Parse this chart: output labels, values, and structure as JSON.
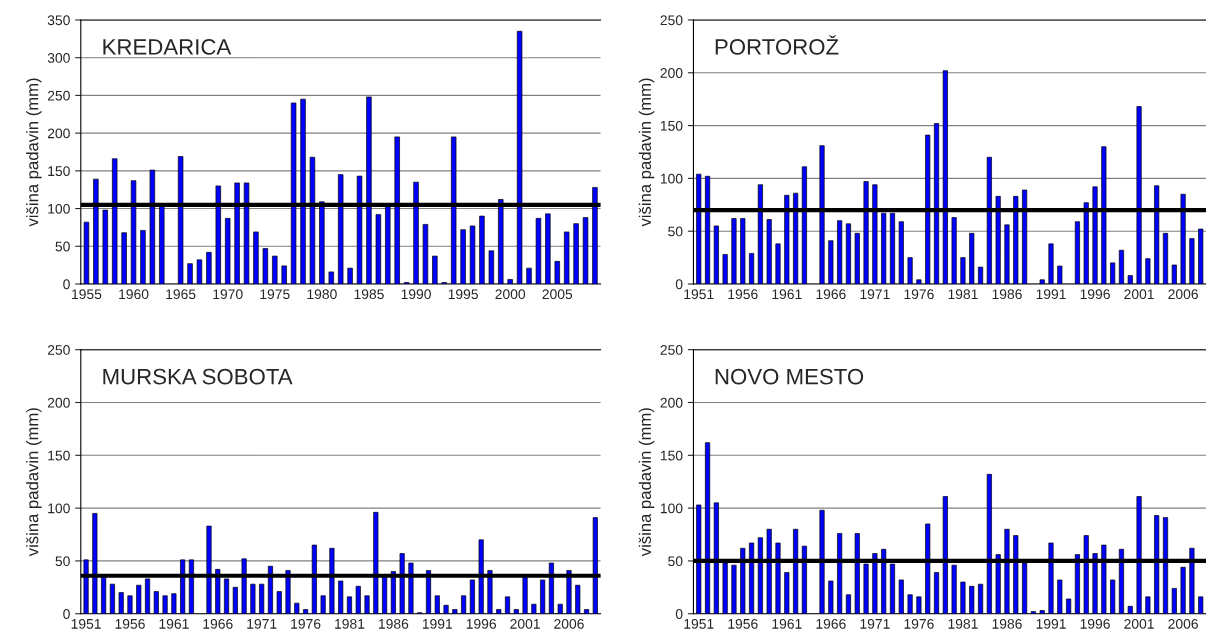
{
  "chart_data": [
    {
      "type": "bar",
      "title": "KREDARICA",
      "ylabel": "višina padavin (mm)",
      "ylim": [
        0,
        350
      ],
      "yticks": [
        0,
        50,
        100,
        150,
        200,
        250,
        300,
        350
      ],
      "grid": "y",
      "color": "#0000ff",
      "categories": [
        "1955",
        null,
        null,
        null,
        null,
        "1960",
        null,
        null,
        null,
        null,
        "1965",
        null,
        null,
        null,
        null,
        "1970",
        null,
        null,
        null,
        null,
        "1975",
        null,
        null,
        null,
        null,
        "1980",
        null,
        null,
        null,
        null,
        "1985",
        null,
        null,
        null,
        null,
        "1990",
        null,
        null,
        null,
        null,
        "1995",
        null,
        null,
        null,
        null,
        "2000",
        null,
        null,
        null,
        null,
        "2005",
        null,
        null,
        null,
        null
      ],
      "values": [
        82,
        139,
        98,
        166,
        68,
        137,
        71,
        151,
        104,
        null,
        169,
        27,
        32,
        42,
        130,
        87,
        134,
        134,
        69,
        47,
        37,
        24,
        240,
        245,
        168,
        109,
        16,
        145,
        21,
        143,
        248,
        92,
        104,
        195,
        2,
        135,
        79,
        37,
        2,
        195,
        72,
        77,
        90,
        44,
        112,
        6,
        335,
        21,
        87,
        93,
        30,
        69,
        80,
        88,
        128
      ],
      "ref_lines": [
        {
          "axis": "y",
          "value": 105,
          "color": "#000000"
        }
      ]
    },
    {
      "type": "bar",
      "title": "PORTOROŽ",
      "ylabel": "višina padavin (mm)",
      "ylim": [
        0,
        250
      ],
      "yticks": [
        0,
        50,
        100,
        150,
        200,
        250
      ],
      "grid": "y",
      "color": "#0000ff",
      "categories": [
        "1951",
        null,
        null,
        null,
        null,
        "1956",
        null,
        null,
        null,
        null,
        "1961",
        null,
        null,
        null,
        null,
        "1966",
        null,
        null,
        null,
        null,
        "1971",
        null,
        null,
        null,
        null,
        "1976",
        null,
        null,
        null,
        null,
        "1981",
        null,
        null,
        null,
        null,
        "1986",
        null,
        null,
        null,
        null,
        "1991",
        null,
        null,
        null,
        null,
        "1996",
        null,
        null,
        null,
        null,
        "2001",
        null,
        null,
        null,
        null,
        "2006",
        null,
        null
      ],
      "values": [
        104,
        102,
        55,
        28,
        62,
        62,
        29,
        94,
        61,
        38,
        84,
        86,
        111,
        null,
        131,
        41,
        60,
        57,
        48,
        97,
        94,
        67,
        67,
        59,
        25,
        4,
        141,
        152,
        202,
        63,
        25,
        48,
        16,
        120,
        83,
        56,
        83,
        89,
        null,
        4,
        38,
        17,
        null,
        59,
        77,
        92,
        130,
        20,
        32,
        8,
        168,
        24,
        93,
        48,
        18,
        85,
        43,
        52
      ],
      "ref_lines": [
        {
          "axis": "y",
          "value": 70,
          "color": "#000000"
        }
      ]
    },
    {
      "type": "bar",
      "title": "MURSKA SOBOTA",
      "ylabel": "višina padavin (mm)",
      "ylim": [
        0,
        250
      ],
      "yticks": [
        0,
        50,
        100,
        150,
        200,
        250
      ],
      "grid": "y",
      "color": "#0000ff",
      "categories": [
        "1951",
        null,
        null,
        null,
        null,
        "1956",
        null,
        null,
        null,
        null,
        "1961",
        null,
        null,
        null,
        null,
        "1966",
        null,
        null,
        null,
        null,
        "1971",
        null,
        null,
        null,
        null,
        "1976",
        null,
        null,
        null,
        null,
        "1981",
        null,
        null,
        null,
        null,
        "1986",
        null,
        null,
        null,
        null,
        "1991",
        null,
        null,
        null,
        null,
        "1996",
        null,
        null,
        null,
        null,
        "2001",
        null,
        null,
        null,
        null,
        "2006",
        null,
        null,
        null
      ],
      "values": [
        51,
        95,
        35,
        28,
        20,
        17,
        27,
        33,
        21,
        17,
        19,
        51,
        51,
        null,
        83,
        42,
        33,
        25,
        52,
        28,
        28,
        45,
        21,
        41,
        10,
        4,
        65,
        17,
        62,
        31,
        16,
        26,
        17,
        96,
        36,
        40,
        57,
        48,
        1,
        41,
        17,
        8,
        4,
        17,
        32,
        70,
        41,
        4,
        16,
        4,
        36,
        9,
        32,
        48,
        9,
        41,
        27,
        4,
        91
      ],
      "ref_lines": [
        {
          "axis": "y",
          "value": 36,
          "color": "#000000"
        }
      ]
    },
    {
      "type": "bar",
      "title": "NOVO MESTO",
      "ylabel": "višina padavin (mm)",
      "ylim": [
        0,
        250
      ],
      "yticks": [
        0,
        50,
        100,
        150,
        200,
        250
      ],
      "grid": "y",
      "color": "#0000ff",
      "categories": [
        "1951",
        null,
        null,
        null,
        null,
        "1956",
        null,
        null,
        null,
        null,
        "1961",
        null,
        null,
        null,
        null,
        "1966",
        null,
        null,
        null,
        null,
        "1971",
        null,
        null,
        null,
        null,
        "1976",
        null,
        null,
        null,
        null,
        "1981",
        null,
        null,
        null,
        null,
        "1986",
        null,
        null,
        null,
        null,
        "1991",
        null,
        null,
        null,
        null,
        "1996",
        null,
        null,
        null,
        null,
        "2001",
        null,
        null,
        null,
        null,
        "2006",
        null,
        null
      ],
      "values": [
        103,
        162,
        105,
        48,
        46,
        62,
        67,
        72,
        80,
        67,
        39,
        80,
        64,
        null,
        98,
        31,
        76,
        18,
        76,
        47,
        57,
        61,
        47,
        32,
        18,
        16,
        85,
        39,
        111,
        46,
        30,
        26,
        28,
        132,
        56,
        80,
        74,
        48,
        2,
        3,
        67,
        32,
        14,
        56,
        74,
        57,
        65,
        32,
        61,
        7,
        111,
        16,
        93,
        91,
        24,
        44,
        62,
        16
      ],
      "ref_lines": [
        {
          "axis": "y",
          "value": 50,
          "color": "#000000"
        }
      ]
    }
  ]
}
